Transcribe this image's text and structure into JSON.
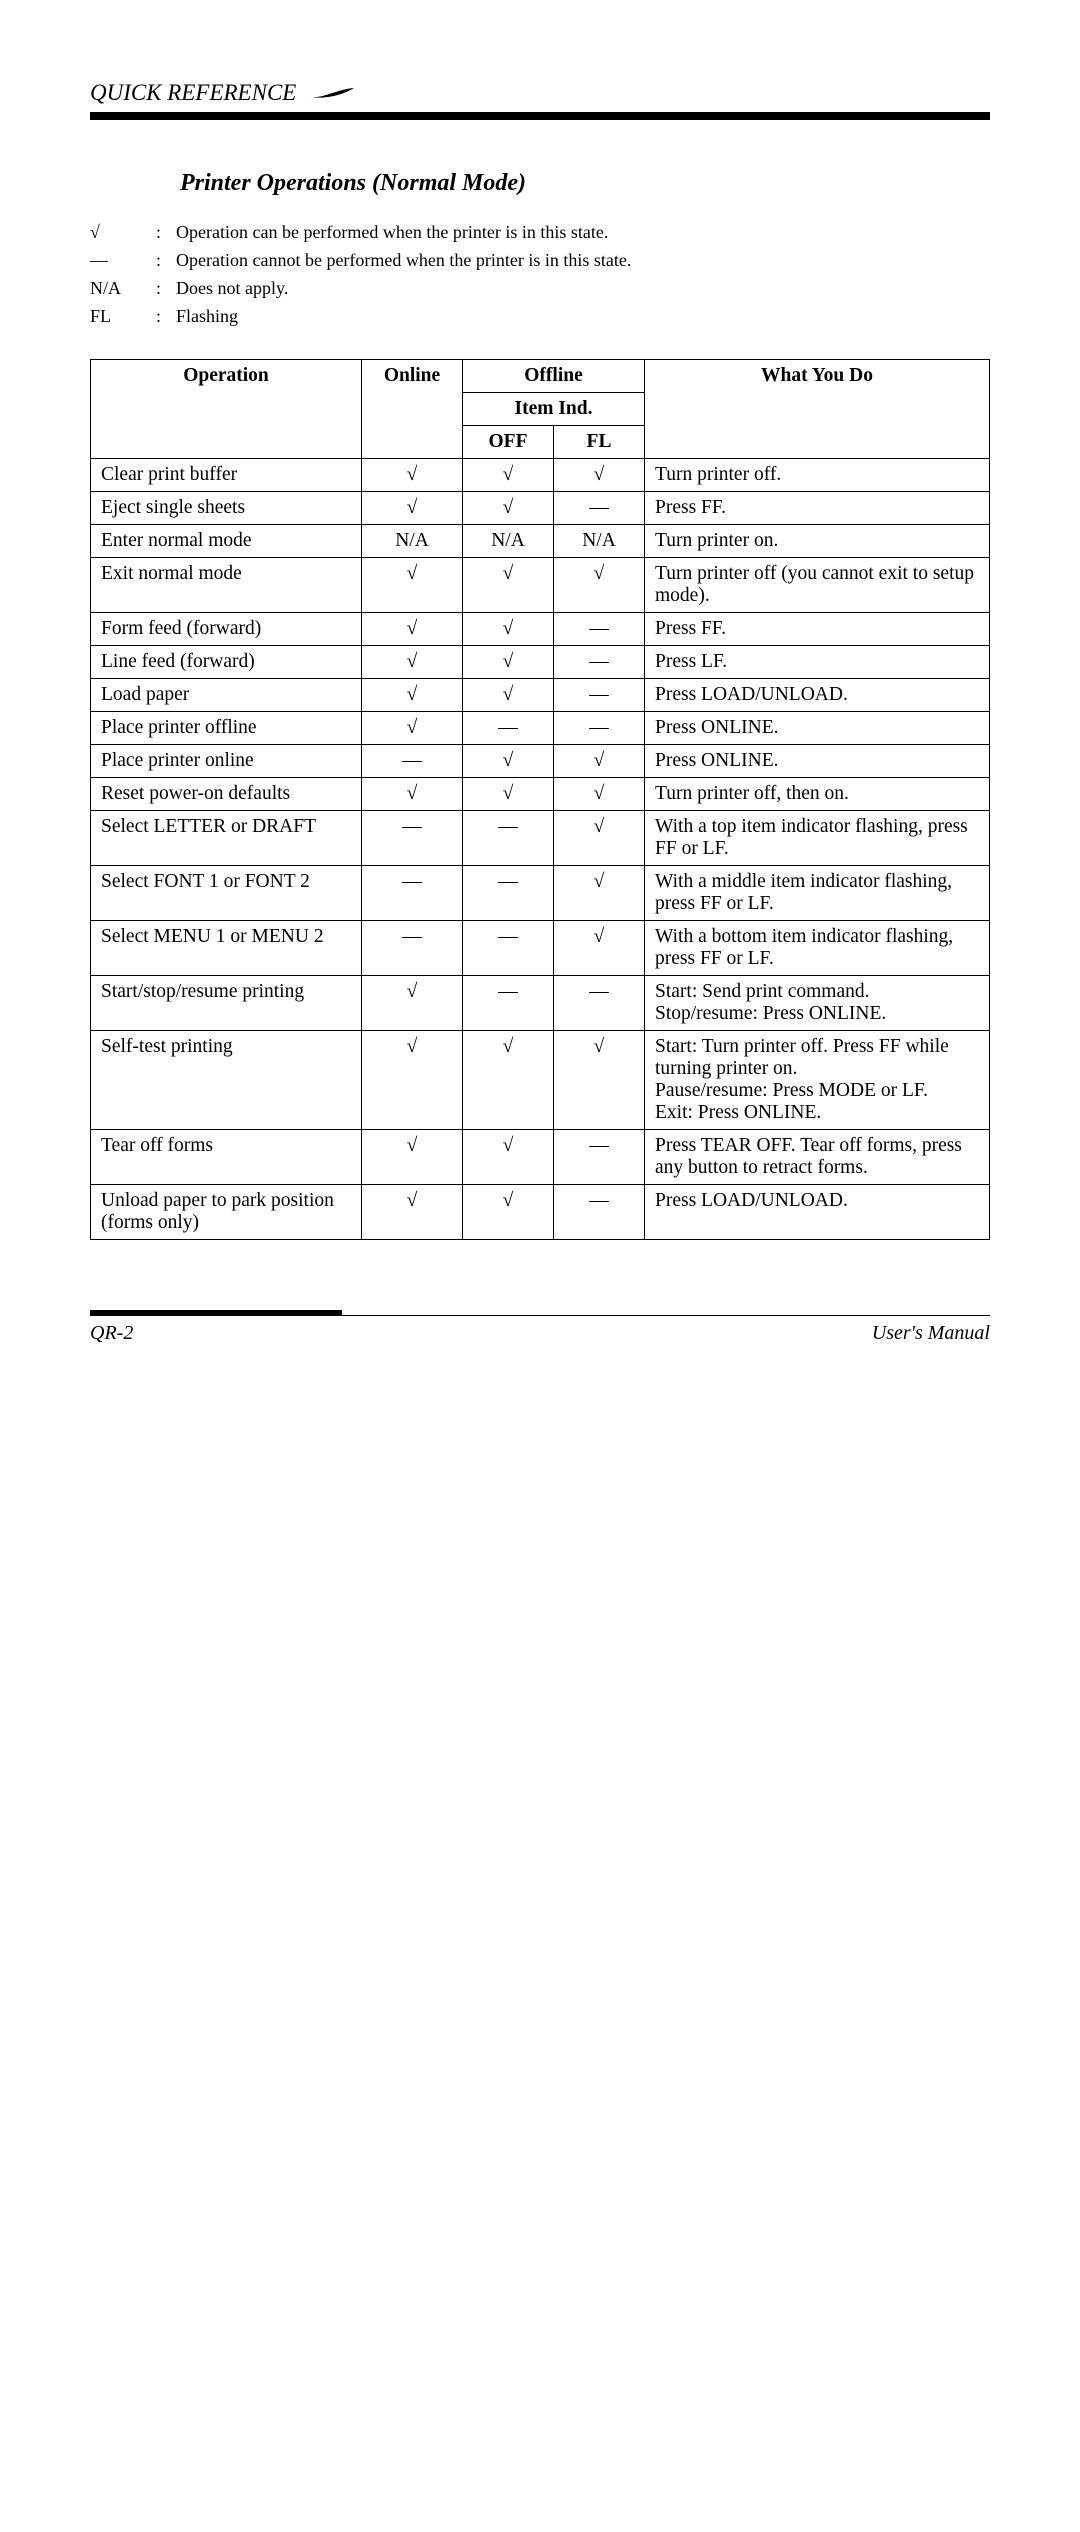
{
  "header": {
    "section": "QUICK REFERENCE"
  },
  "title": "Printer Operations (Normal Mode)",
  "legend": [
    {
      "sym": "√",
      "text": "Operation can be performed when the printer is in this state."
    },
    {
      "sym": "—",
      "text": "Operation cannot be performed when the printer is in this state."
    },
    {
      "sym": "N/A",
      "text": "Does not apply."
    },
    {
      "sym": "FL",
      "text": "Flashing"
    }
  ],
  "table": {
    "head": {
      "operation": "Operation",
      "online": "Online",
      "offline": "Offline",
      "item_ind": "Item Ind.",
      "off": "OFF",
      "fl": "FL",
      "what": "What You Do"
    },
    "rows": [
      {
        "op": "Clear print buffer",
        "online": "√",
        "off": "√",
        "fl": "√",
        "what": "Turn printer off."
      },
      {
        "op": "Eject single sheets",
        "online": "√",
        "off": "√",
        "fl": "—",
        "what": "Press FF."
      },
      {
        "op": "Enter normal mode",
        "online": "N/A",
        "off": "N/A",
        "fl": "N/A",
        "what": "Turn printer on."
      },
      {
        "op": "Exit normal mode",
        "online": "√",
        "off": "√",
        "fl": "√",
        "what": "Turn printer off (you cannot exit to setup mode)."
      },
      {
        "op": "Form feed (forward)",
        "online": "√",
        "off": "√",
        "fl": "—",
        "what": "Press FF."
      },
      {
        "op": "Line feed (forward)",
        "online": "√",
        "off": "√",
        "fl": "—",
        "what": "Press LF."
      },
      {
        "op": "Load paper",
        "online": "√",
        "off": "√",
        "fl": "—",
        "what": "Press LOAD/UNLOAD."
      },
      {
        "op": "Place printer offline",
        "online": "√",
        "off": "—",
        "fl": "—",
        "what": "Press ONLINE."
      },
      {
        "op": "Place printer online",
        "online": "—",
        "off": "√",
        "fl": "√",
        "what": "Press ONLINE."
      },
      {
        "op": "Reset power-on defaults",
        "online": "√",
        "off": "√",
        "fl": "√",
        "what": "Turn printer off, then on."
      },
      {
        "op": "Select LETTER or DRAFT",
        "online": "—",
        "off": "—",
        "fl": "√",
        "what": "With a top item indicator flashing, press FF or LF."
      },
      {
        "op": "Select FONT 1 or FONT 2",
        "online": "—",
        "off": "—",
        "fl": "√",
        "what": "With a middle item indicator flashing, press FF or LF."
      },
      {
        "op": "Select MENU 1 or MENU 2",
        "online": "—",
        "off": "—",
        "fl": "√",
        "what": "With a bottom item indicator flashing, press FF or LF."
      },
      {
        "op": "Start/stop/resume printing",
        "online": "√",
        "off": "—",
        "fl": "—",
        "what": "Start:  Send print command.\nStop/resume:  Press ONLINE."
      },
      {
        "op": "Self-test printing",
        "online": "√",
        "off": "√",
        "fl": "√",
        "what": "Start:  Turn printer off.  Press FF while turning printer on.\nPause/resume:  Press MODE or LF.\nExit:  Press ONLINE."
      },
      {
        "op": "Tear off forms",
        "online": "√",
        "off": "√",
        "fl": "—",
        "what": "Press TEAR OFF.  Tear off forms, press any button to retract forms."
      },
      {
        "op": "Unload paper to park position (forms only)",
        "online": "√",
        "off": "√",
        "fl": "—",
        "what": "Press LOAD/UNLOAD."
      }
    ]
  },
  "footer": {
    "left": "QR-2",
    "right": "User's Manual"
  }
}
